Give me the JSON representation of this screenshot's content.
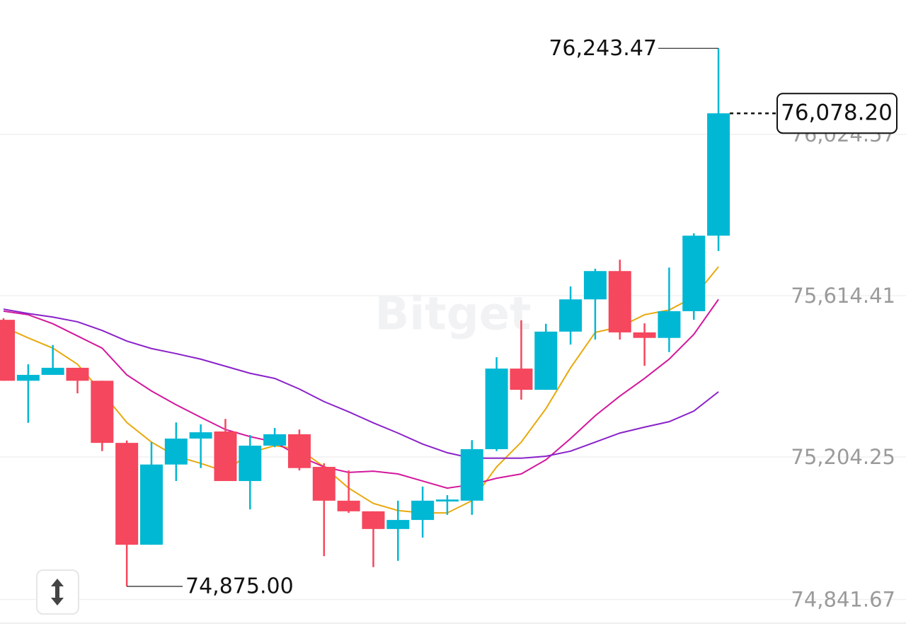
{
  "chart_data": {
    "type": "candlestick",
    "watermark": "Bitget",
    "ylim": [
      74774.3,
      76366.4
    ],
    "yticks": [
      {
        "value": 76024.57,
        "label": "76,024.57"
      },
      {
        "value": 75614.41,
        "label": "75,614.41"
      },
      {
        "value": 75204.25,
        "label": "75,204.25"
      },
      {
        "value": 74841.67,
        "label": "74,841.67"
      }
    ],
    "grid": true,
    "up_color": "#00b8d4",
    "down_color": "#f5475e",
    "candles": {
      "open": [
        75553,
        75398,
        75413,
        75431,
        75398,
        75240,
        74981,
        75185,
        75251,
        75269,
        75143,
        75233,
        75262,
        75179,
        75093,
        75066,
        75021,
        75044,
        75091,
        75093,
        75224,
        75429,
        75375,
        75523,
        75605,
        75677,
        75521,
        75507,
        75575,
        75767
      ],
      "high": [
        75557,
        75440,
        75489,
        75431,
        75398,
        75246,
        75242,
        75292,
        75287,
        75301,
        75260,
        75278,
        75274,
        75188,
        75170,
        75066,
        75093,
        75129,
        75107,
        75247,
        75458,
        75552,
        75543,
        75638,
        75683,
        75706,
        75544,
        75686,
        75773,
        76243.47
      ],
      "low": [
        75398,
        75291,
        75413,
        75366,
        75219,
        74875.0,
        74981,
        75143,
        75176,
        75143,
        75071,
        75229,
        75170,
        74952,
        75062,
        74924,
        74940,
        74999,
        75057,
        75057,
        75219,
        75350,
        75375,
        75490,
        75503,
        75503,
        75436,
        75471,
        75553,
        75728
      ],
      "close": [
        75398,
        75413,
        75431,
        75398,
        75240,
        74981,
        75185,
        75251,
        75267,
        75143,
        75233,
        75262,
        75176,
        75093,
        75066,
        75021,
        75044,
        75093,
        75096,
        75224,
        75429,
        75375,
        75523,
        75605,
        75677,
        75521,
        75507,
        75575,
        75767,
        76078.2
      ]
    },
    "lines": [
      {
        "color": "#e8a90c",
        "values": [
          75535,
          75507,
          75481,
          75440,
          75368,
          75292,
          75242,
          75206,
          75188,
          75167,
          75215,
          75233,
          75224,
          75179,
          75125,
          75086,
          75068,
          75062,
          75062,
          75093,
          75179,
          75242,
          75327,
          75431,
          75521,
          75535,
          75566,
          75578,
          75611,
          75688
        ]
      },
      {
        "color": "#d3189c",
        "values": [
          75575,
          75566,
          75543,
          75512,
          75481,
          75413,
          75372,
          75337,
          75305,
          75274,
          75256,
          75242,
          75206,
          75179,
          75165,
          75168,
          75161,
          75143,
          75125,
          75134,
          75150,
          75161,
          75197,
          75251,
          75309,
          75359,
          75404,
          75453,
          75516,
          75605
        ]
      },
      {
        "color": "#8a22c9",
        "values": [
          75580,
          75569,
          75560,
          75548,
          75526,
          75499,
          75480,
          75467,
          75453,
          75435,
          75417,
          75404,
          75377,
          75345,
          75319,
          75291,
          75265,
          75237,
          75215,
          75201,
          75201,
          75201,
          75206,
          75219,
          75242,
          75265,
          75280,
          75294,
          75321,
          75370
        ]
      }
    ],
    "high_label": "76,243.47",
    "low_label": "74,875.00",
    "last_price_label": "76,078.20"
  }
}
